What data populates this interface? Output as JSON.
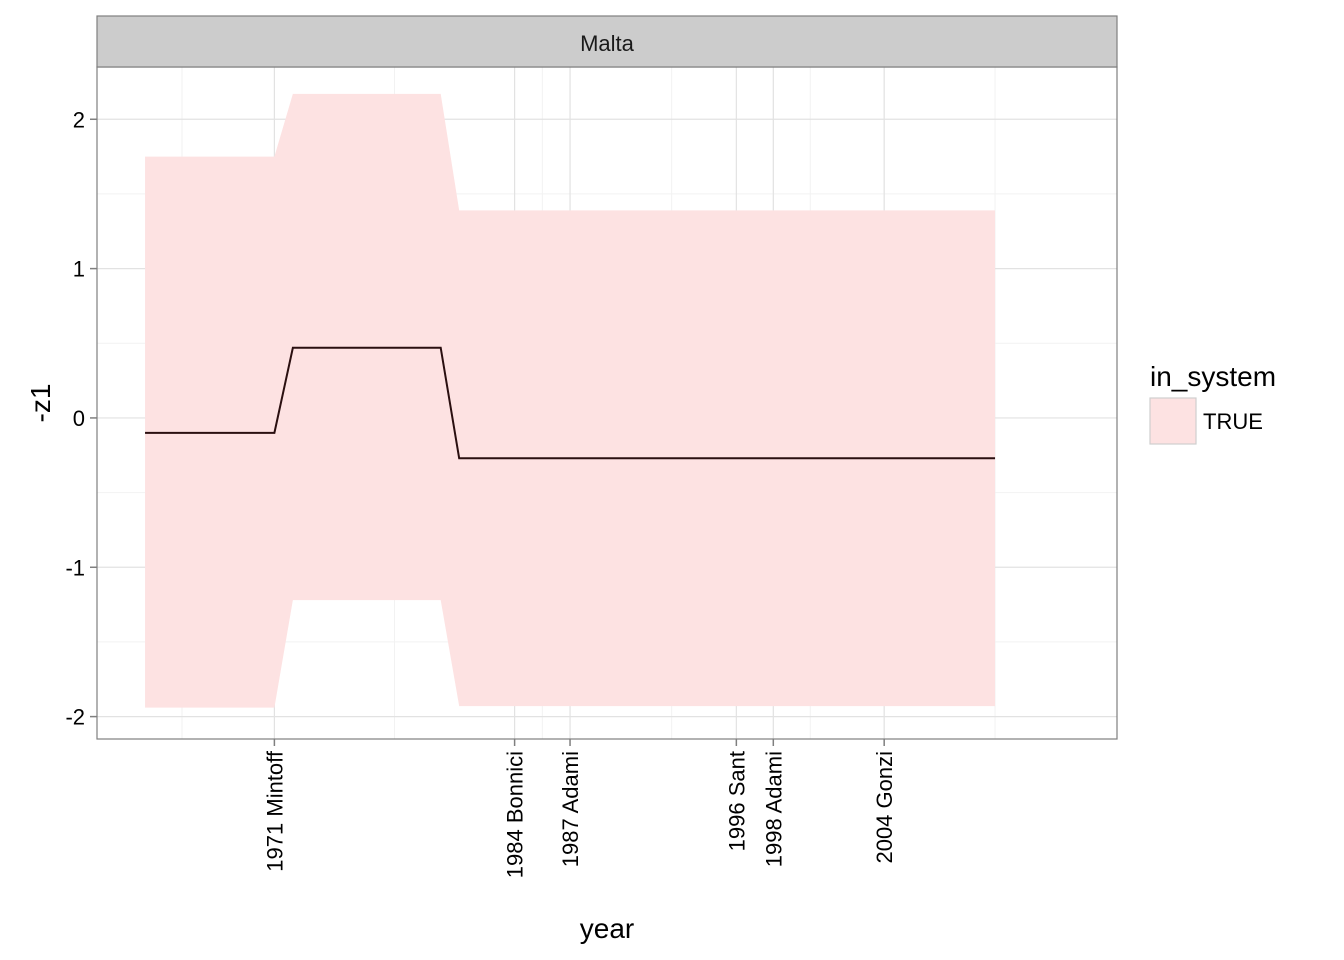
{
  "chart_data": {
    "type": "area",
    "facet": "Malta",
    "xlabel": "year",
    "ylabel": "-z1",
    "xlim": [
      1961.4,
      2016.6
    ],
    "ylim": [
      -2.15,
      2.35
    ],
    "y_ticks": [
      -2,
      -1,
      0,
      1,
      2
    ],
    "x_ticks": [
      {
        "year": 1971,
        "label": "1971 Mintoff"
      },
      {
        "year": 1984,
        "label": "1984 Bonnici"
      },
      {
        "year": 1987,
        "label": "1987 Adami"
      },
      {
        "year": 1996,
        "label": "1996 Sant"
      },
      {
        "year": 1998,
        "label": "1998 Adami"
      },
      {
        "year": 2004,
        "label": "2004 Gonzi"
      }
    ],
    "minor_gridlines_x": [
      1966,
      1977.5,
      1985.5,
      1992.5,
      2000,
      2010
    ],
    "minor_gridlines_y": [
      -1.5,
      -0.5,
      0.5,
      1.5
    ],
    "grid": true,
    "legend": {
      "title": "in_system",
      "position": "right",
      "entries": [
        {
          "label": "TRUE",
          "color": "#FDE2E2"
        }
      ]
    },
    "series": [
      {
        "name": "TRUE",
        "ribbon_color": "#FDE2E2",
        "line_color": "#2a0f10",
        "x": [
          1964,
          1971,
          1972,
          1980,
          1981,
          2010
        ],
        "y": [
          -0.1,
          -0.1,
          0.47,
          0.47,
          -0.27,
          -0.27
        ],
        "ymin": [
          -1.94,
          -1.94,
          -1.22,
          -1.22,
          -1.93,
          -1.93
        ],
        "ymax": [
          1.75,
          1.75,
          2.17,
          2.17,
          1.39,
          1.39
        ]
      }
    ]
  }
}
